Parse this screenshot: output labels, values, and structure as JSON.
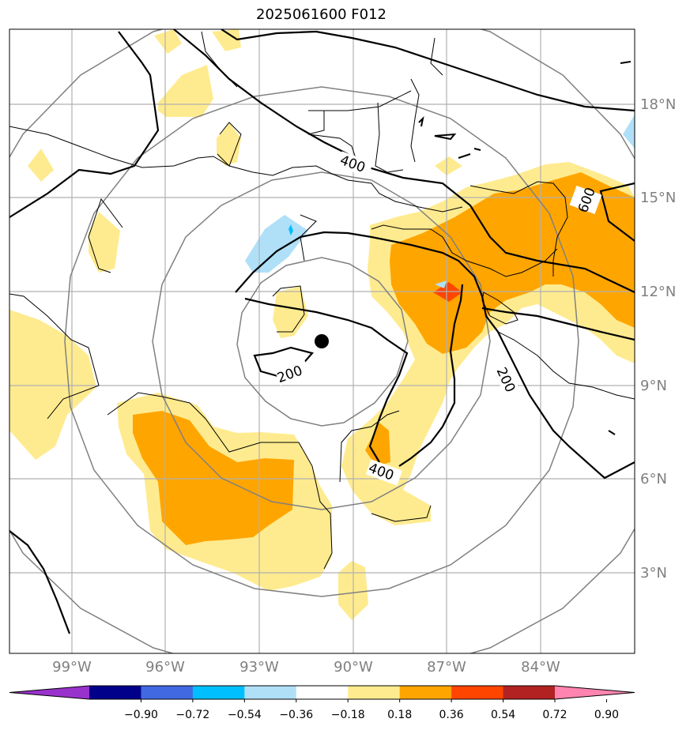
{
  "title": "2025061600 F012",
  "map": {
    "lat_labels": [
      "18°N",
      "15°N",
      "12°N",
      "9°N",
      "6°N",
      "3°N"
    ],
    "lon_labels": [
      "99°W",
      "96°W",
      "93°W",
      "90°W",
      "87°W",
      "84°W"
    ],
    "contour_labels": [
      "400",
      "600",
      "200",
      "200",
      "400"
    ],
    "colors": {
      "shade_030": "#ffeb8f",
      "shade_036": "#ffa500",
      "shade_054": "#ff4500",
      "shade_neg_018": "#b0e0f8",
      "shade_neg_036": "#00bfff",
      "gridline": "#b0b0b0",
      "range_ring": "#808080",
      "contour": "#000000",
      "coastline": "#000000"
    },
    "center_marker": "black-dot"
  },
  "colorbar": {
    "ticks": [
      "−0.90",
      "−0.72",
      "−0.54",
      "−0.36",
      "−0.18",
      "0.18",
      "0.36",
      "0.54",
      "0.72",
      "0.90"
    ],
    "colors": [
      "#9932cc",
      "#00008b",
      "#4169e1",
      "#00bfff",
      "#b0e0f8",
      "#ffffff",
      "#ffeb8f",
      "#ffa500",
      "#ff4500",
      "#b22222",
      "#ff85b0"
    ]
  }
}
